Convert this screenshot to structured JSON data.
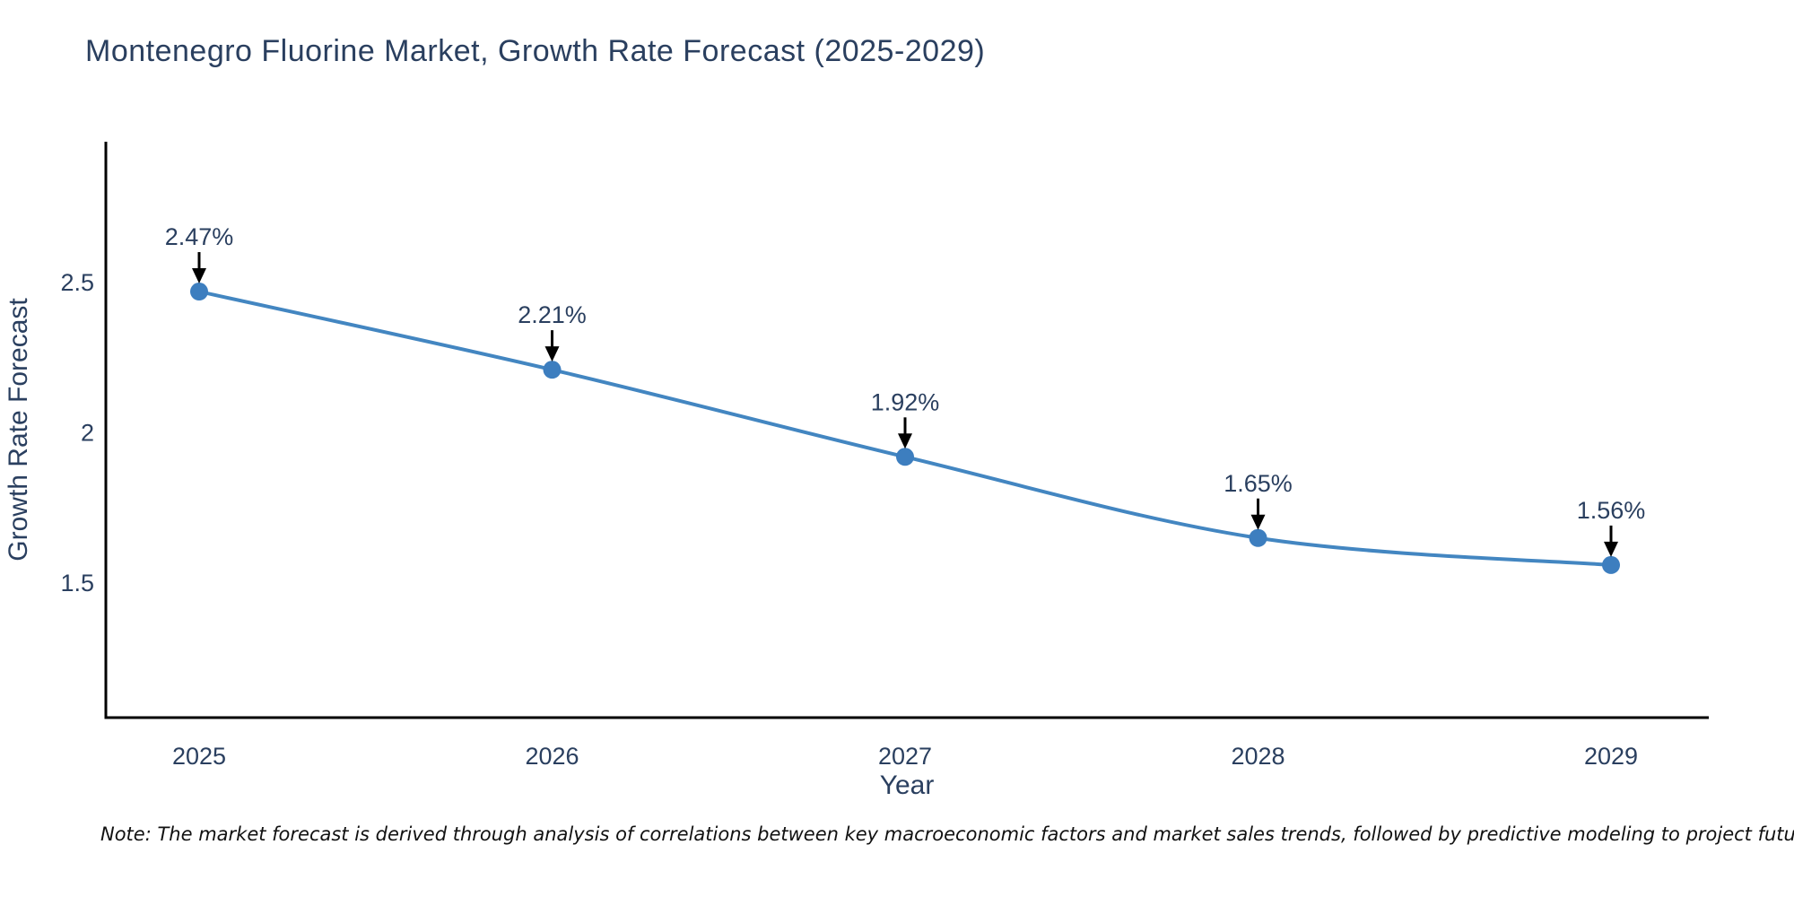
{
  "title": "Montenegro Fluorine Market, Growth Rate Forecast (2025-2029)",
  "footnote": "Note: The market forecast is derived through analysis of correlations between key macroeconomic factors and market sales trends, followed by predictive modeling to project future sales",
  "chart_data": {
    "type": "line",
    "x": [
      2025,
      2026,
      2027,
      2028,
      2029
    ],
    "series": [
      {
        "name": "Growth Rate Forecast",
        "values": [
          2.47,
          2.21,
          1.92,
          1.65,
          1.56
        ]
      }
    ],
    "point_labels": [
      "2.47%",
      "2.21%",
      "1.92%",
      "1.65%",
      "1.56%"
    ],
    "title": "Montenegro Fluorine Market, Growth Rate Forecast (2025-2029)",
    "xlabel": "Year",
    "ylabel": "Growth Rate Forecast",
    "xticks": [
      "2025",
      "2026",
      "2027",
      "2028",
      "2029"
    ],
    "yticks": [
      2.5,
      2,
      1.5
    ],
    "ylim": [
      1.06,
      2.98
    ],
    "grid": false,
    "line_shape": "spline",
    "legend": "none",
    "annotations": "value labels with down arrows above each point",
    "colors": {
      "line": "#4386c1",
      "marker": "#3d7ebf",
      "arrow": "#000000",
      "axis_line": "#000000",
      "text": "#2a3f5f"
    }
  }
}
